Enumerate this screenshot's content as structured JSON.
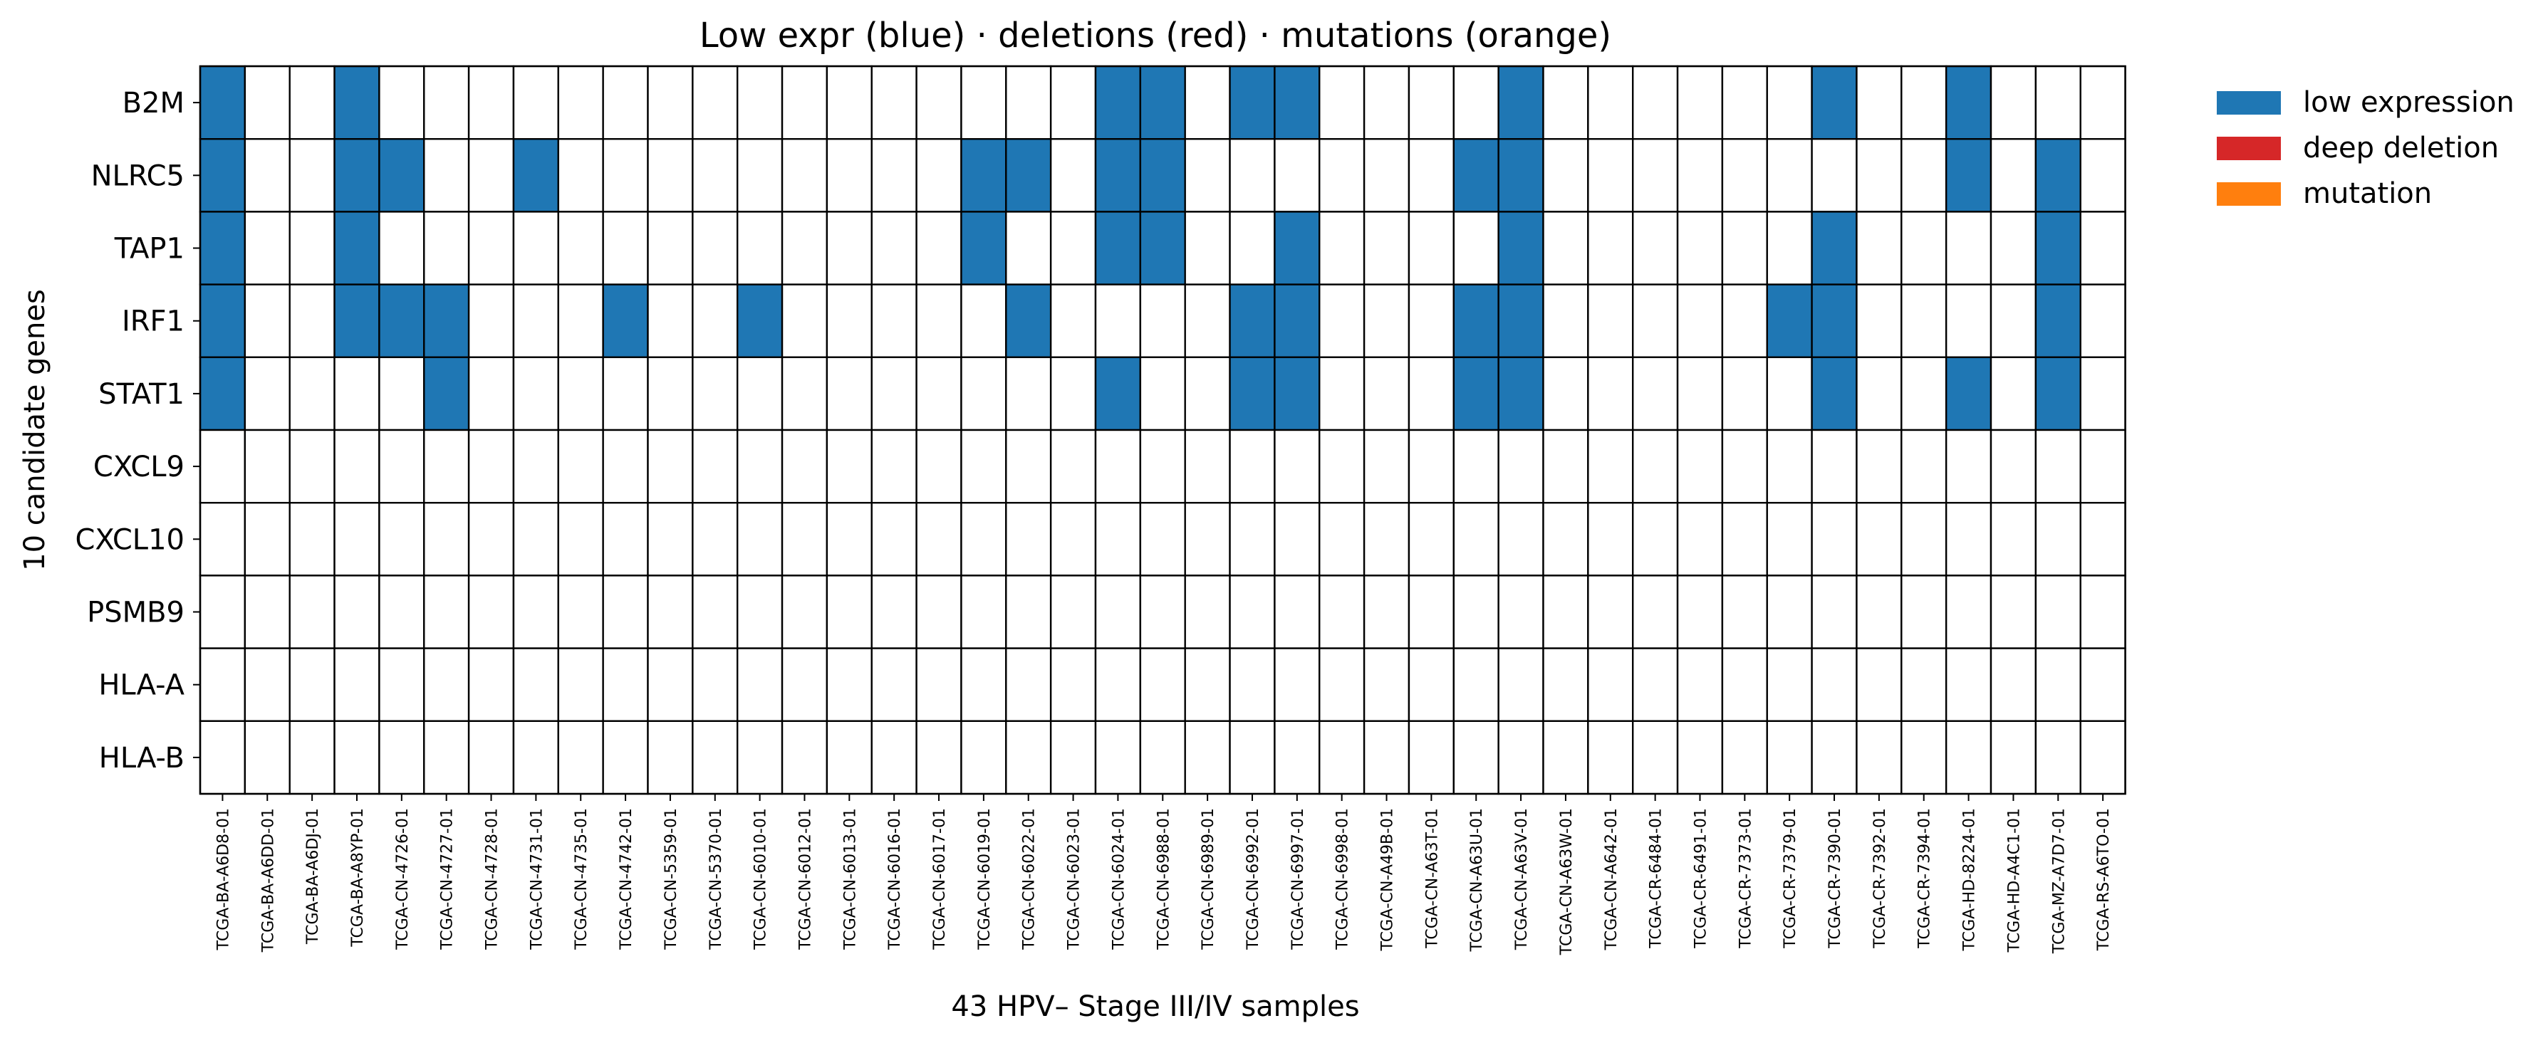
{
  "chart_data": {
    "type": "heatmap",
    "title": "Low expr (blue) · deletions (red) · mutations (orange)",
    "xlabel": "43 HPV– Stage III/IV samples",
    "ylabel": "10 candidate genes",
    "genes": [
      "B2M",
      "NLRC5",
      "TAP1",
      "IRF1",
      "STAT1",
      "CXCL9",
      "CXCL10",
      "PSMB9",
      "HLA-A",
      "HLA-B"
    ],
    "samples": [
      "TCGA-BA-A6D8-01",
      "TCGA-BA-A6DD-01",
      "TCGA-BA-A6DJ-01",
      "TCGA-BA-A8YP-01",
      "TCGA-CN-4726-01",
      "TCGA-CN-4727-01",
      "TCGA-CN-4728-01",
      "TCGA-CN-4731-01",
      "TCGA-CN-4735-01",
      "TCGA-CN-4742-01",
      "TCGA-CN-5359-01",
      "TCGA-CN-5370-01",
      "TCGA-CN-6010-01",
      "TCGA-CN-6012-01",
      "TCGA-CN-6013-01",
      "TCGA-CN-6016-01",
      "TCGA-CN-6017-01",
      "TCGA-CN-6019-01",
      "TCGA-CN-6022-01",
      "TCGA-CN-6023-01",
      "TCGA-CN-6024-01",
      "TCGA-CN-6988-01",
      "TCGA-CN-6989-01",
      "TCGA-CN-6992-01",
      "TCGA-CN-6997-01",
      "TCGA-CN-6998-01",
      "TCGA-CN-A49B-01",
      "TCGA-CN-A63T-01",
      "TCGA-CN-A63U-01",
      "TCGA-CN-A63V-01",
      "TCGA-CN-A63W-01",
      "TCGA-CN-A642-01",
      "TCGA-CR-6484-01",
      "TCGA-CR-6491-01",
      "TCGA-CR-7373-01",
      "TCGA-CR-7379-01",
      "TCGA-CR-7390-01",
      "TCGA-CR-7392-01",
      "TCGA-CR-7394-01",
      "TCGA-HD-8224-01",
      "TCGA-HD-A4C1-01",
      "TCGA-MZ-A7D7-01",
      "TCGA-RS-A6TO-01"
    ],
    "cell_states": [
      "none",
      "low expression",
      "deep deletion",
      "mutation"
    ],
    "matrix": [
      [
        1,
        0,
        0,
        1,
        0,
        0,
        0,
        0,
        0,
        0,
        0,
        0,
        0,
        0,
        0,
        0,
        0,
        0,
        0,
        0,
        1,
        1,
        0,
        1,
        1,
        0,
        0,
        0,
        0,
        1,
        0,
        0,
        0,
        0,
        0,
        0,
        1,
        0,
        0,
        1,
        0,
        0,
        0
      ],
      [
        1,
        0,
        0,
        1,
        1,
        0,
        0,
        1,
        0,
        0,
        0,
        0,
        0,
        0,
        0,
        0,
        0,
        1,
        1,
        0,
        1,
        1,
        0,
        0,
        0,
        0,
        0,
        0,
        1,
        1,
        0,
        0,
        0,
        0,
        0,
        0,
        0,
        0,
        0,
        1,
        0,
        1,
        0
      ],
      [
        1,
        0,
        0,
        1,
        0,
        0,
        0,
        0,
        0,
        0,
        0,
        0,
        0,
        0,
        0,
        0,
        0,
        1,
        0,
        0,
        1,
        1,
        0,
        0,
        1,
        0,
        0,
        0,
        0,
        1,
        0,
        0,
        0,
        0,
        0,
        0,
        1,
        0,
        0,
        0,
        0,
        1,
        0
      ],
      [
        1,
        0,
        0,
        1,
        1,
        1,
        0,
        0,
        0,
        1,
        0,
        0,
        1,
        0,
        0,
        0,
        0,
        0,
        1,
        0,
        0,
        0,
        0,
        1,
        1,
        0,
        0,
        0,
        1,
        1,
        0,
        0,
        0,
        0,
        0,
        1,
        1,
        0,
        0,
        0,
        0,
        1,
        0
      ],
      [
        1,
        0,
        0,
        0,
        0,
        1,
        0,
        0,
        0,
        0,
        0,
        0,
        0,
        0,
        0,
        0,
        0,
        0,
        0,
        0,
        1,
        0,
        0,
        1,
        1,
        0,
        0,
        0,
        1,
        1,
        0,
        0,
        0,
        0,
        0,
        0,
        1,
        0,
        0,
        1,
        0,
        1,
        0
      ],
      [
        0,
        0,
        0,
        0,
        0,
        0,
        0,
        0,
        0,
        0,
        0,
        0,
        0,
        0,
        0,
        0,
        0,
        0,
        0,
        0,
        0,
        0,
        0,
        0,
        0,
        0,
        0,
        0,
        0,
        0,
        0,
        0,
        0,
        0,
        0,
        0,
        0,
        0,
        0,
        0,
        0,
        0,
        0
      ],
      [
        0,
        0,
        0,
        0,
        0,
        0,
        0,
        0,
        0,
        0,
        0,
        0,
        0,
        0,
        0,
        0,
        0,
        0,
        0,
        0,
        0,
        0,
        0,
        0,
        0,
        0,
        0,
        0,
        0,
        0,
        0,
        0,
        0,
        0,
        0,
        0,
        0,
        0,
        0,
        0,
        0,
        0,
        0
      ],
      [
        0,
        0,
        0,
        0,
        0,
        0,
        0,
        0,
        0,
        0,
        0,
        0,
        0,
        0,
        0,
        0,
        0,
        0,
        0,
        0,
        0,
        0,
        0,
        0,
        0,
        0,
        0,
        0,
        0,
        0,
        0,
        0,
        0,
        0,
        0,
        0,
        0,
        0,
        0,
        0,
        0,
        0,
        0
      ],
      [
        0,
        0,
        0,
        0,
        0,
        0,
        0,
        0,
        0,
        0,
        0,
        0,
        0,
        0,
        0,
        0,
        0,
        0,
        0,
        0,
        0,
        0,
        0,
        0,
        0,
        0,
        0,
        0,
        0,
        0,
        0,
        0,
        0,
        0,
        0,
        0,
        0,
        0,
        0,
        0,
        0,
        0,
        0
      ],
      [
        0,
        0,
        0,
        0,
        0,
        0,
        0,
        0,
        0,
        0,
        0,
        0,
        0,
        0,
        0,
        0,
        0,
        0,
        0,
        0,
        0,
        0,
        0,
        0,
        0,
        0,
        0,
        0,
        0,
        0,
        0,
        0,
        0,
        0,
        0,
        0,
        0,
        0,
        0,
        0,
        0,
        0,
        0
      ]
    ],
    "colors": {
      "none": "#ffffff",
      "low_expression": "#1f77b4",
      "deep_deletion": "#d62728",
      "mutation": "#ff7f0e"
    },
    "legend": [
      {
        "label": "low expression",
        "color": "#1f77b4"
      },
      {
        "label": "deep deletion",
        "color": "#d62728"
      },
      {
        "label": "mutation",
        "color": "#ff7f0e"
      }
    ],
    "legend_position": "upper right, outside plot",
    "grid": true
  }
}
